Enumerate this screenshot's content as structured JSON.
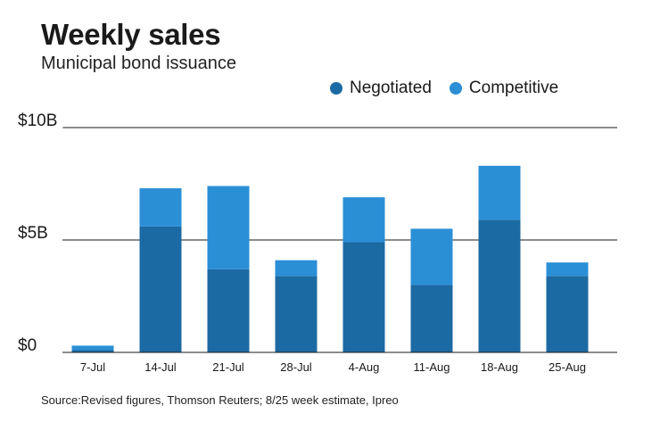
{
  "header": {
    "title": "Weekly sales",
    "subtitle": "Municipal bond issuance"
  },
  "legend": {
    "items": [
      {
        "label": "Negotiated",
        "color": "#1c6aa3"
      },
      {
        "label": "Competitive",
        "color": "#2b8fd6"
      }
    ]
  },
  "source": "Source:Revised figures, Thomson Reuters; 8/25 week estimate, Ipreo",
  "chart_data": {
    "type": "bar",
    "stacked": true,
    "title": "Weekly sales",
    "subtitle": "Municipal bond issuance",
    "xlabel": "",
    "ylabel": "",
    "categories": [
      "7-Jul",
      "14-Jul",
      "21-Jul",
      "28-Jul",
      "4-Aug",
      "11-Aug",
      "18-Aug",
      "25-Aug"
    ],
    "series": [
      {
        "name": "Negotiated",
        "color": "#1c6aa3",
        "values": [
          0.1,
          5.6,
          3.7,
          3.4,
          4.9,
          3.0,
          5.9,
          3.4
        ]
      },
      {
        "name": "Competitive",
        "color": "#2b8fd6",
        "values": [
          0.2,
          1.7,
          3.7,
          0.7,
          2.0,
          2.5,
          2.4,
          0.6
        ]
      }
    ],
    "ylim": [
      0,
      10
    ],
    "yticks": [
      0,
      5,
      10
    ],
    "ytick_labels": [
      "$0",
      "$5B",
      "$10B"
    ],
    "grid": true,
    "legend_position": "top-right"
  }
}
